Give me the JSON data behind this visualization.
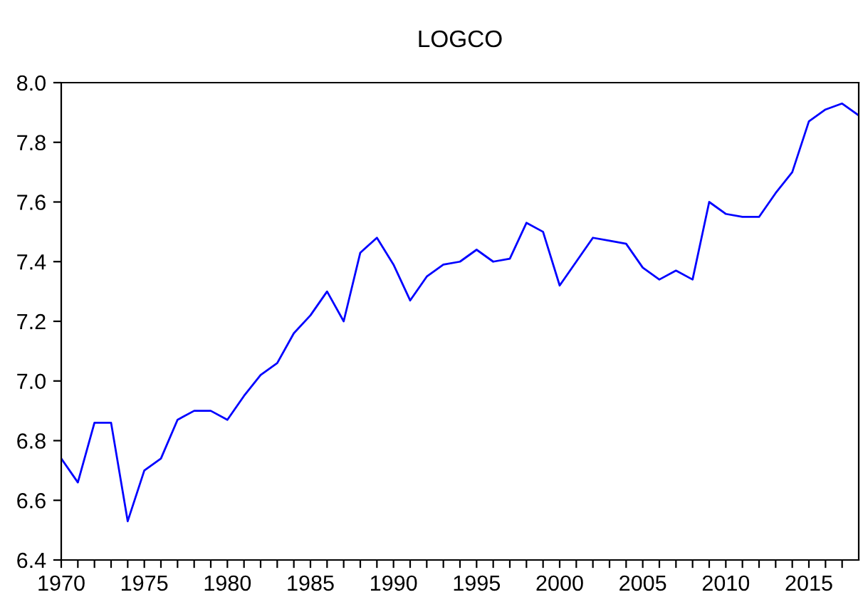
{
  "chart_data": {
    "type": "line",
    "title": "LOGCO",
    "x": [
      1970,
      1971,
      1972,
      1973,
      1974,
      1975,
      1976,
      1977,
      1978,
      1979,
      1980,
      1981,
      1982,
      1983,
      1984,
      1985,
      1986,
      1987,
      1988,
      1989,
      1990,
      1991,
      1992,
      1993,
      1994,
      1995,
      1996,
      1997,
      1998,
      1999,
      2000,
      2001,
      2002,
      2003,
      2004,
      2005,
      2006,
      2007,
      2008,
      2009,
      2010,
      2011,
      2012,
      2013,
      2014,
      2015,
      2016,
      2017,
      2018
    ],
    "series": [
      {
        "color": "#0000ff",
        "values": [
          6.74,
          6.66,
          6.86,
          6.86,
          6.53,
          6.7,
          6.74,
          6.87,
          6.9,
          6.9,
          6.87,
          6.95,
          7.02,
          7.06,
          7.16,
          7.22,
          7.3,
          7.2,
          7.43,
          7.48,
          7.39,
          7.27,
          7.35,
          7.39,
          7.4,
          7.44,
          7.4,
          7.41,
          7.53,
          7.5,
          7.32,
          7.4,
          7.48,
          7.47,
          7.46,
          7.38,
          7.34,
          7.37,
          7.34,
          7.6,
          7.56,
          7.55,
          7.55,
          7.63,
          7.7,
          7.87,
          7.91,
          7.93,
          7.89
        ]
      }
    ],
    "xlim": [
      1970,
      2018
    ],
    "ylim": [
      6.4,
      8.0
    ],
    "xticks": [
      1970,
      {
        "value": 1971,
        "label": null
      },
      {
        "value": 1972,
        "label": null
      },
      {
        "value": 1973,
        "label": null
      },
      {
        "value": 1974,
        "label": null
      },
      1975,
      {
        "value": 1976,
        "label": null
      },
      {
        "value": 1977,
        "label": null
      },
      {
        "value": 1978,
        "label": null
      },
      {
        "value": 1979,
        "label": null
      },
      1980,
      {
        "value": 1981,
        "label": null
      },
      {
        "value": 1982,
        "label": null
      },
      {
        "value": 1983,
        "label": null
      },
      {
        "value": 1984,
        "label": null
      },
      1985,
      {
        "value": 1986,
        "label": null
      },
      {
        "value": 1987,
        "label": null
      },
      {
        "value": 1988,
        "label": null
      },
      {
        "value": 1989,
        "label": null
      },
      1990,
      {
        "value": 1991,
        "label": null
      },
      {
        "value": 1992,
        "label": null
      },
      {
        "value": 1993,
        "label": null
      },
      {
        "value": 1994,
        "label": null
      },
      1995,
      {
        "value": 1996,
        "label": null
      },
      {
        "value": 1997,
        "label": null
      },
      {
        "value": 1998,
        "label": null
      },
      {
        "value": 1999,
        "label": null
      },
      2000,
      {
        "value": 2001,
        "label": null
      },
      {
        "value": 2002,
        "label": null
      },
      {
        "value": 2003,
        "label": null
      },
      {
        "value": 2004,
        "label": null
      },
      2005,
      {
        "value": 2006,
        "label": null
      },
      {
        "value": 2007,
        "label": null
      },
      {
        "value": 2008,
        "label": null
      },
      {
        "value": 2009,
        "label": null
      },
      2010,
      {
        "value": 2011,
        "label": null
      },
      {
        "value": 2012,
        "label": null
      },
      {
        "value": 2013,
        "label": null
      },
      {
        "value": 2014,
        "label": null
      },
      2015,
      {
        "value": 2016,
        "label": null
      },
      {
        "value": 2017,
        "label": null
      }
    ],
    "yticks": [
      {
        "value": 6.4,
        "label": "6.4"
      },
      {
        "value": 6.6,
        "label": "6.6"
      },
      {
        "value": 6.8,
        "label": "6.8"
      },
      {
        "value": 7.0,
        "label": "7.0"
      },
      {
        "value": 7.2,
        "label": "7.2"
      },
      {
        "value": 7.4,
        "label": "7.4"
      },
      {
        "value": 7.6,
        "label": "7.6"
      },
      {
        "value": 7.8,
        "label": "7.8"
      },
      {
        "value": 8.0,
        "label": "8.0"
      }
    ]
  }
}
